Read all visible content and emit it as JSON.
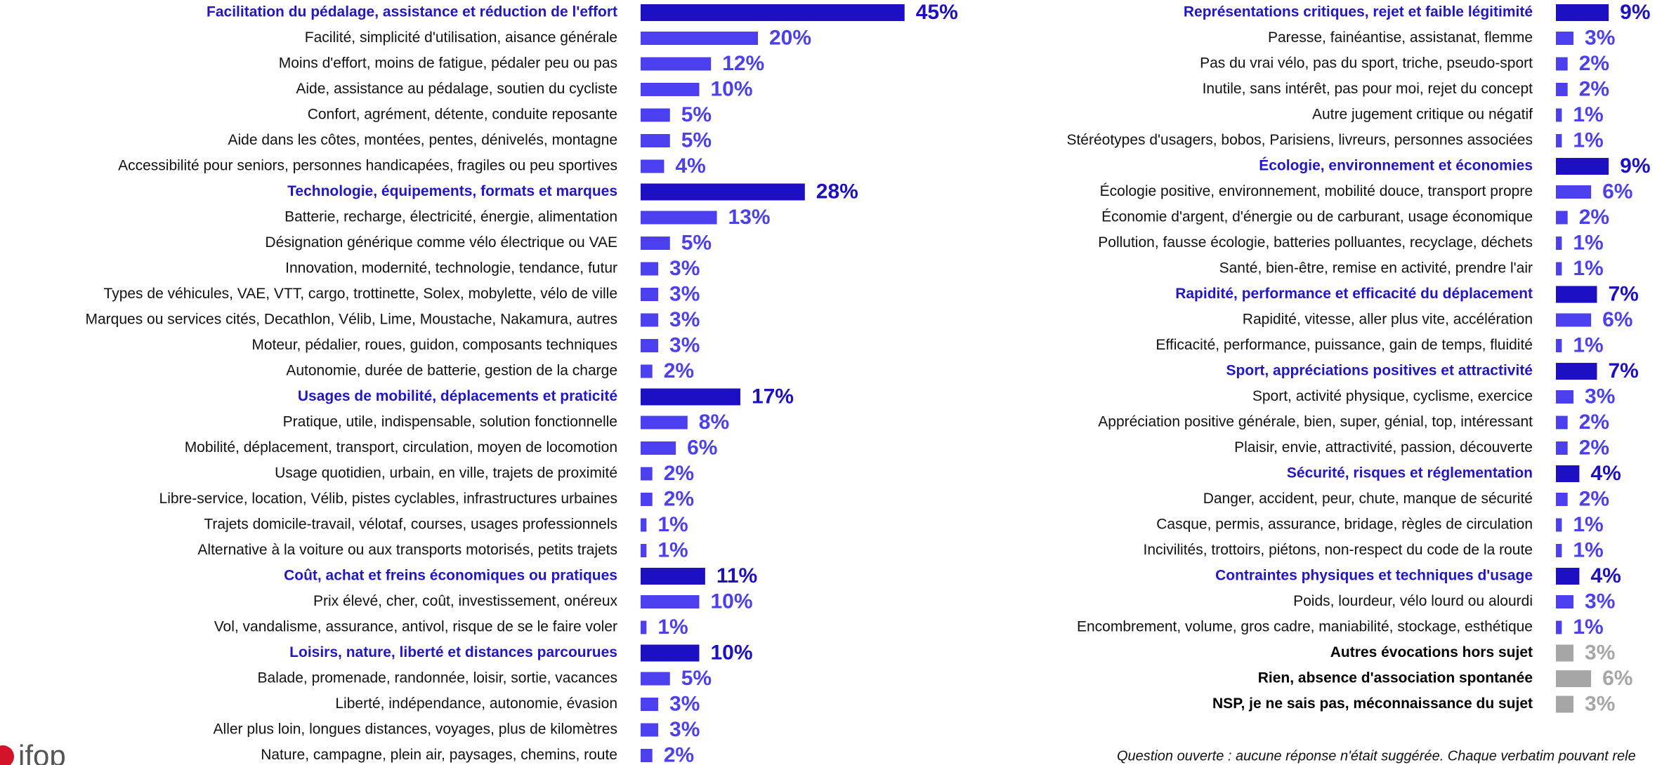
{
  "logo": "ifop",
  "footnote": "Question ouverte : aucune réponse n'était suggérée. Chaque verbatim pouvant rele",
  "chart_data": [
    {
      "type": "bar",
      "categories": [
        "Facilitation du pédalage, assistance et réduction de l'effort",
        "Facilité, simplicité d'utilisation, aisance générale",
        "Moins d'effort, moins de fatigue, pédaler peu ou pas",
        "Aide, assistance au pédalage, soutien du cycliste",
        "Confort, agrément, détente, conduite reposante",
        "Aide dans les côtes, montées, pentes, dénivelés, montagne",
        "Accessibilité pour seniors, personnes handicapées, fragiles ou peu sportives",
        "Technologie, équipements, formats et marques",
        "Batterie, recharge, électricité, énergie, alimentation",
        "Désignation générique comme vélo électrique ou VAE",
        "Innovation, modernité, technologie, tendance, futur",
        "Types de véhicules, VAE, VTT, cargo, trottinette, Solex, mobylette, vélo de ville",
        "Marques ou services cités, Decathlon, Vélib, Lime, Moustache, Nakamura, autres",
        "Moteur, pédalier, roues, guidon, composants techniques",
        "Autonomie, durée de batterie, gestion de la charge",
        "Usages de mobilité, déplacements et praticité",
        "Pratique, utile, indispensable, solution fonctionnelle",
        "Mobilité, déplacement, transport, circulation, moyen de locomotion",
        "Usage quotidien, urbain, en ville, trajets de proximité",
        "Libre-service, location, Vélib, pistes cyclables, infrastructures urbaines",
        "Trajets domicile-travail, vélotaf, courses, usages professionnels",
        "Alternative à la voiture ou aux transports motorisés, petits trajets",
        "Coût, achat et freins économiques ou pratiques",
        "Prix élevé, cher, coût, investissement, onéreux",
        "Vol, vandalisme, assurance, antivol, risque de se le faire voler",
        "Loisirs, nature, liberté et distances parcourues",
        "Balade, promenade, randonnée, loisir, sortie, vacances",
        "Liberté, indépendance, autonomie, évasion",
        "Aller plus loin, longues distances, voyages, plus de kilomètres",
        "Nature, campagne, plein air, paysages, chemins, route"
      ],
      "values": [
        45,
        20,
        12,
        10,
        5,
        5,
        4,
        28,
        13,
        5,
        3,
        3,
        3,
        3,
        2,
        17,
        8,
        6,
        2,
        2,
        1,
        1,
        11,
        10,
        1,
        10,
        5,
        3,
        3,
        2
      ],
      "value_labels": [
        "45%",
        "20%",
        "12%",
        "10%",
        "5%",
        "5%",
        "4%",
        "28%",
        "13%",
        "5%",
        "3%",
        "3%",
        "3%",
        "3%",
        "2%",
        "17%",
        "8%",
        "6%",
        "2%",
        "2%",
        "1%",
        "1%",
        "11%",
        "10%",
        "1%",
        "10%",
        "5%",
        "3%",
        "3%",
        "2%"
      ],
      "colors": [
        "#1c0fc4",
        "#4b3ff0",
        "#4b3ff0",
        "#4b3ff0",
        "#4b3ff0",
        "#4b3ff0",
        "#4b3ff0",
        "#1c0fc4",
        "#4b3ff0",
        "#4b3ff0",
        "#4b3ff0",
        "#4b3ff0",
        "#4b3ff0",
        "#4b3ff0",
        "#4b3ff0",
        "#1c0fc4",
        "#4b3ff0",
        "#4b3ff0",
        "#4b3ff0",
        "#4b3ff0",
        "#4b3ff0",
        "#4b3ff0",
        "#1c0fc4",
        "#4b3ff0",
        "#4b3ff0",
        "#1c0fc4",
        "#4b3ff0",
        "#4b3ff0",
        "#4b3ff0",
        "#4b3ff0"
      ],
      "label_colors": [
        "#2216c8",
        "#111111",
        "#111111",
        "#111111",
        "#111111",
        "#111111",
        "#111111",
        "#2216c8",
        "#111111",
        "#111111",
        "#111111",
        "#111111",
        "#111111",
        "#111111",
        "#111111",
        "#2216c8",
        "#111111",
        "#111111",
        "#111111",
        "#111111",
        "#111111",
        "#111111",
        "#2216c8",
        "#111111",
        "#111111",
        "#2216c8",
        "#111111",
        "#111111",
        "#111111",
        "#111111"
      ],
      "bold": [
        true,
        false,
        false,
        false,
        false,
        false,
        false,
        true,
        false,
        false,
        false,
        false,
        false,
        false,
        false,
        true,
        false,
        false,
        false,
        false,
        false,
        false,
        true,
        false,
        false,
        true,
        false,
        false,
        false,
        false
      ]
    },
    {
      "type": "bar",
      "categories": [
        "Représentations critiques, rejet et faible légitimité",
        "Paresse, fainéantise, assistanat, flemme",
        "Pas du vrai vélo, pas du sport, triche, pseudo-sport",
        "Inutile, sans intérêt, pas pour moi, rejet du concept",
        "Autre jugement critique ou négatif",
        "Stéréotypes d'usagers, bobos, Parisiens, livreurs, personnes associées",
        "Écologie, environnement et économies",
        "Écologie positive, environnement, mobilité douce, transport propre",
        "Économie d'argent, d'énergie ou de carburant, usage économique",
        "Pollution, fausse écologie, batteries polluantes, recyclage, déchets",
        "Santé, bien-être, remise en activité, prendre l'air",
        "Rapidité, performance et efficacité du déplacement",
        "Rapidité, vitesse, aller plus vite, accélération",
        "Efficacité, performance, puissance, gain de temps, fluidité",
        "Sport, appréciations positives et attractivité",
        "Sport, activité physique, cyclisme, exercice",
        "Appréciation positive générale, bien, super, génial, top, intéressant",
        "Plaisir, envie, attractivité, passion, découverte",
        "Sécurité, risques et réglementation",
        "Danger, accident, peur, chute, manque de sécurité",
        "Casque, permis, assurance, bridage, règles de circulation",
        "Incivilités, trottoirs, piétons, non-respect du code de la route",
        "Contraintes physiques et techniques d'usage",
        "Poids, lourdeur, vélo lourd ou alourdi",
        "Encombrement, volume, gros cadre, maniabilité, stockage, esthétique",
        "Autres évocations hors sujet",
        "Rien, absence d'association spontanée",
        "NSP, je ne sais pas, méconnaissance du sujet"
      ],
      "values": [
        9,
        3,
        2,
        2,
        1,
        1,
        9,
        6,
        2,
        1,
        1,
        7,
        6,
        1,
        7,
        3,
        2,
        2,
        4,
        2,
        1,
        1,
        4,
        3,
        1,
        3,
        6,
        3
      ],
      "value_labels": [
        "9%",
        "3%",
        "2%",
        "2%",
        "1%",
        "1%",
        "9%",
        "6%",
        "2%",
        "1%",
        "1%",
        "7%",
        "6%",
        "1%",
        "7%",
        "3%",
        "2%",
        "2%",
        "4%",
        "2%",
        "1%",
        "1%",
        "4%",
        "3%",
        "1%",
        "3%",
        "6%",
        "3%"
      ],
      "colors": [
        "#1c0fc4",
        "#4b3ff0",
        "#4b3ff0",
        "#4b3ff0",
        "#4b3ff0",
        "#4b3ff0",
        "#1c0fc4",
        "#4b3ff0",
        "#4b3ff0",
        "#4b3ff0",
        "#4b3ff0",
        "#1c0fc4",
        "#4b3ff0",
        "#4b3ff0",
        "#1c0fc4",
        "#4b3ff0",
        "#4b3ff0",
        "#4b3ff0",
        "#1c0fc4",
        "#4b3ff0",
        "#4b3ff0",
        "#4b3ff0",
        "#1c0fc4",
        "#4b3ff0",
        "#4b3ff0",
        "#a6a6a6",
        "#a6a6a6",
        "#a6a6a6"
      ],
      "label_colors": [
        "#2216c8",
        "#111111",
        "#111111",
        "#111111",
        "#111111",
        "#111111",
        "#2216c8",
        "#111111",
        "#111111",
        "#111111",
        "#111111",
        "#2216c8",
        "#111111",
        "#111111",
        "#2216c8",
        "#111111",
        "#111111",
        "#111111",
        "#2216c8",
        "#111111",
        "#111111",
        "#111111",
        "#2216c8",
        "#111111",
        "#111111",
        "#000000",
        "#000000",
        "#000000"
      ],
      "bold": [
        true,
        false,
        false,
        false,
        false,
        false,
        true,
        false,
        false,
        false,
        false,
        true,
        false,
        false,
        true,
        false,
        false,
        false,
        true,
        false,
        false,
        false,
        true,
        false,
        false,
        true,
        true,
        true
      ]
    }
  ]
}
